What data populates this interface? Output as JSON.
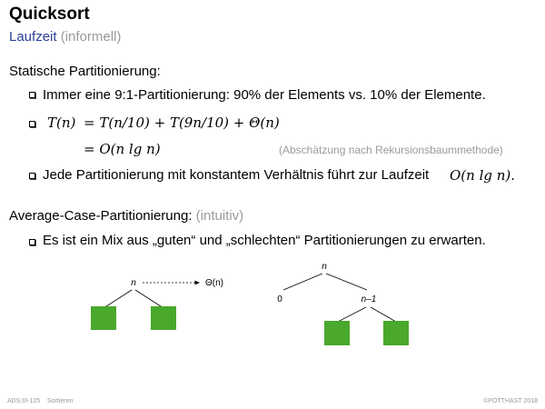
{
  "slide": {
    "title": "Quicksort",
    "subtitle_main": "Laufzeit",
    "subtitle_note": "(informell)"
  },
  "section1": {
    "heading": "Statische Partitionierung:",
    "bullet1": "Immer eine 9:1-Partitionierung: 90% der Elements vs. 10% der Elemente.",
    "eq_line1_lhs": "T(n)",
    "eq_line1_rhs": "= T(n/10) + T(9n/10) + Θ(n)",
    "eq_line2_rhs": "= O(n lg n)",
    "eq_note": "(Abschätzung nach Rekursionsbaummethode)",
    "bullet3_text": "Jede Partitionierung mit konstantem Verhältnis führt zur Laufzeit",
    "bullet3_math": "O(n lg n)."
  },
  "section2": {
    "heading": "Average-Case-Partitionierung:",
    "heading_note": "(intuitiv)",
    "bullet1": "Es ist ein Mix aus „guten“ und „schlechten“ Partitionierungen zu erwarten."
  },
  "diagram": {
    "left_node": "n",
    "left_cost": "Θ(n)",
    "right_root": "n",
    "right_left_child": "0",
    "right_right_child": "n–1",
    "leaf_color": "#4aa82c"
  },
  "footer": {
    "left": "ADS:III-125",
    "center": "Sortieren",
    "right": "©POTTHAST 2018"
  }
}
